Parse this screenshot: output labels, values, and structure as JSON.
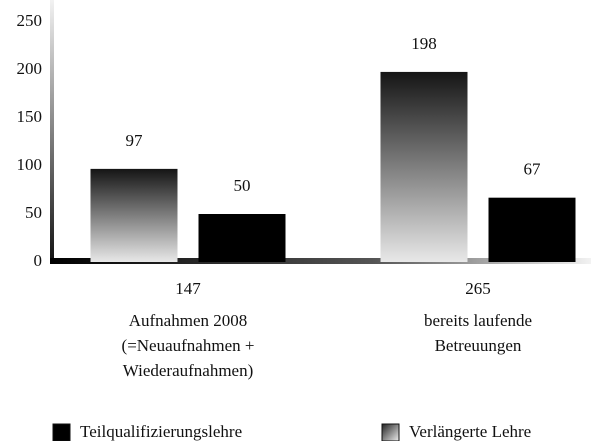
{
  "chart_data": {
    "type": "bar",
    "categories": [
      "Aufnahmen 2008\n(=Neuaufnahmen +\nWiederaufnahmen)",
      "bereits laufende\nBetreuungen"
    ],
    "totals": [
      147,
      265
    ],
    "series": [
      {
        "name": "Verlängerte Lehre",
        "color": "#111111",
        "fill": "gradient",
        "values": [
          97,
          198
        ]
      },
      {
        "name": "Teilqualifizierungslehre",
        "color": "#000000",
        "fill": "solid",
        "values": [
          50,
          67
        ]
      }
    ],
    "ylim": [
      0,
      250
    ],
    "yticks": [
      0,
      50,
      100,
      150,
      200,
      250
    ],
    "grid": false
  }
}
